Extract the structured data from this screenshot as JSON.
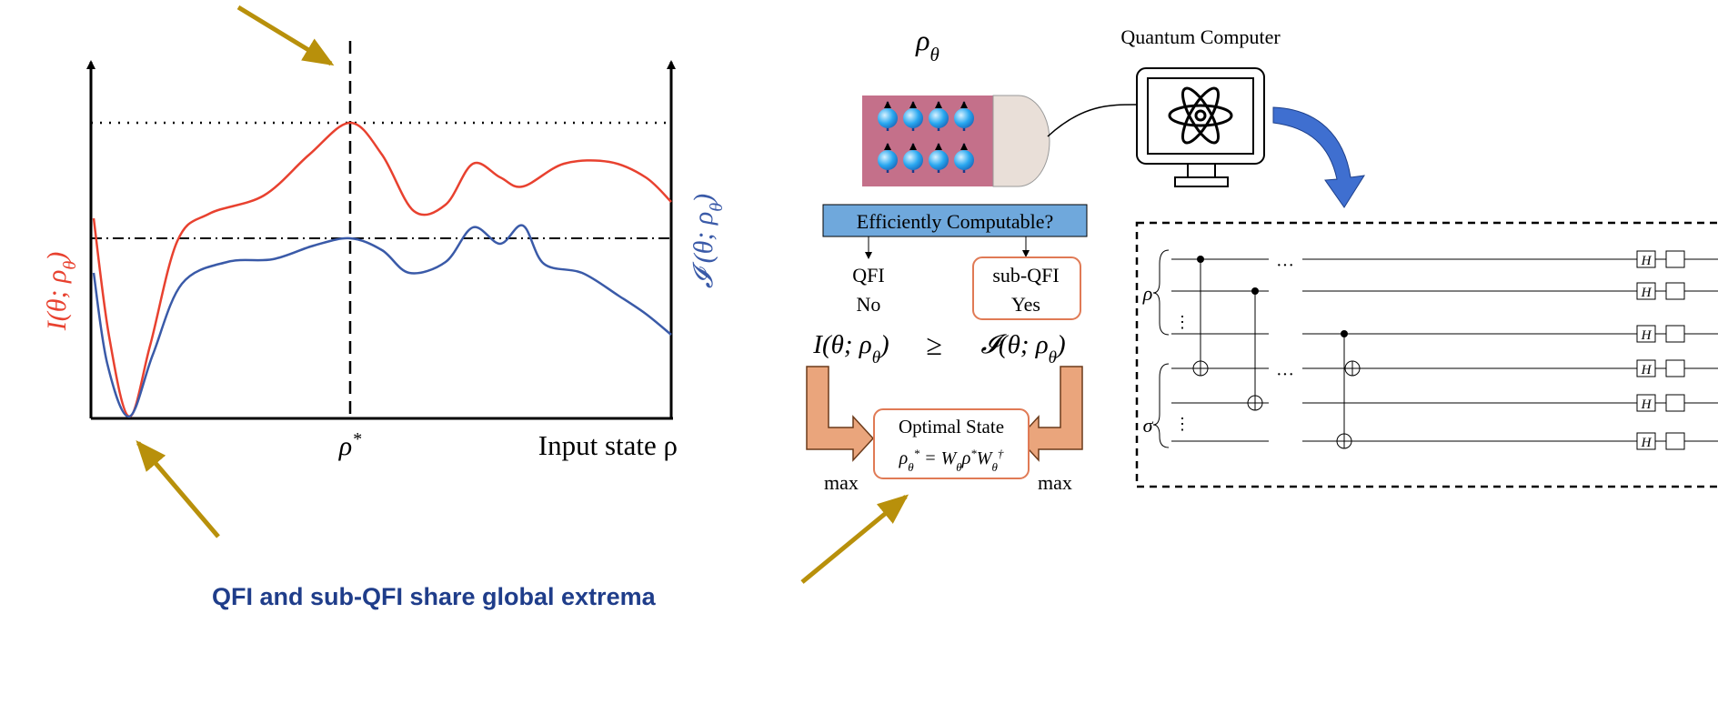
{
  "plot": {
    "y_label_left": [
      "I",
      "(θ; ρ",
      "θ",
      ")"
    ],
    "y_label_right": [
      "𝓘",
      " (θ; ρ",
      "θ",
      ")"
    ],
    "x_label": "Input state ρ",
    "optimum": [
      "ρ",
      "*"
    ]
  },
  "caption": "QFI and sub-QFI share global extrema",
  "setup": {
    "state": [
      "ρ",
      "θ"
    ],
    "computer": "Quantum Computer"
  },
  "flow": {
    "question": "Efficiently Computable?",
    "left_name": "QFI",
    "left_answer": "No",
    "right_name": "sub-QFI",
    "right_answer": "Yes",
    "inequality_left": [
      "I(θ; ρ",
      "θ",
      ")"
    ],
    "inequality_sign": "≥",
    "inequality_right": [
      "𝓘(θ; ρ",
      "θ",
      ")"
    ],
    "optimal_title": "Optimal State",
    "optimal_formula": [
      "ρ",
      "θ",
      "*",
      " = W",
      "θ",
      "ρ",
      "*",
      "W",
      "θ",
      "†"
    ],
    "max": "max"
  },
  "circuit": {
    "rho": "ρ",
    "sigma": "σ",
    "gate": "H",
    "ellipsis": "···",
    "vdots": "⋮"
  }
}
